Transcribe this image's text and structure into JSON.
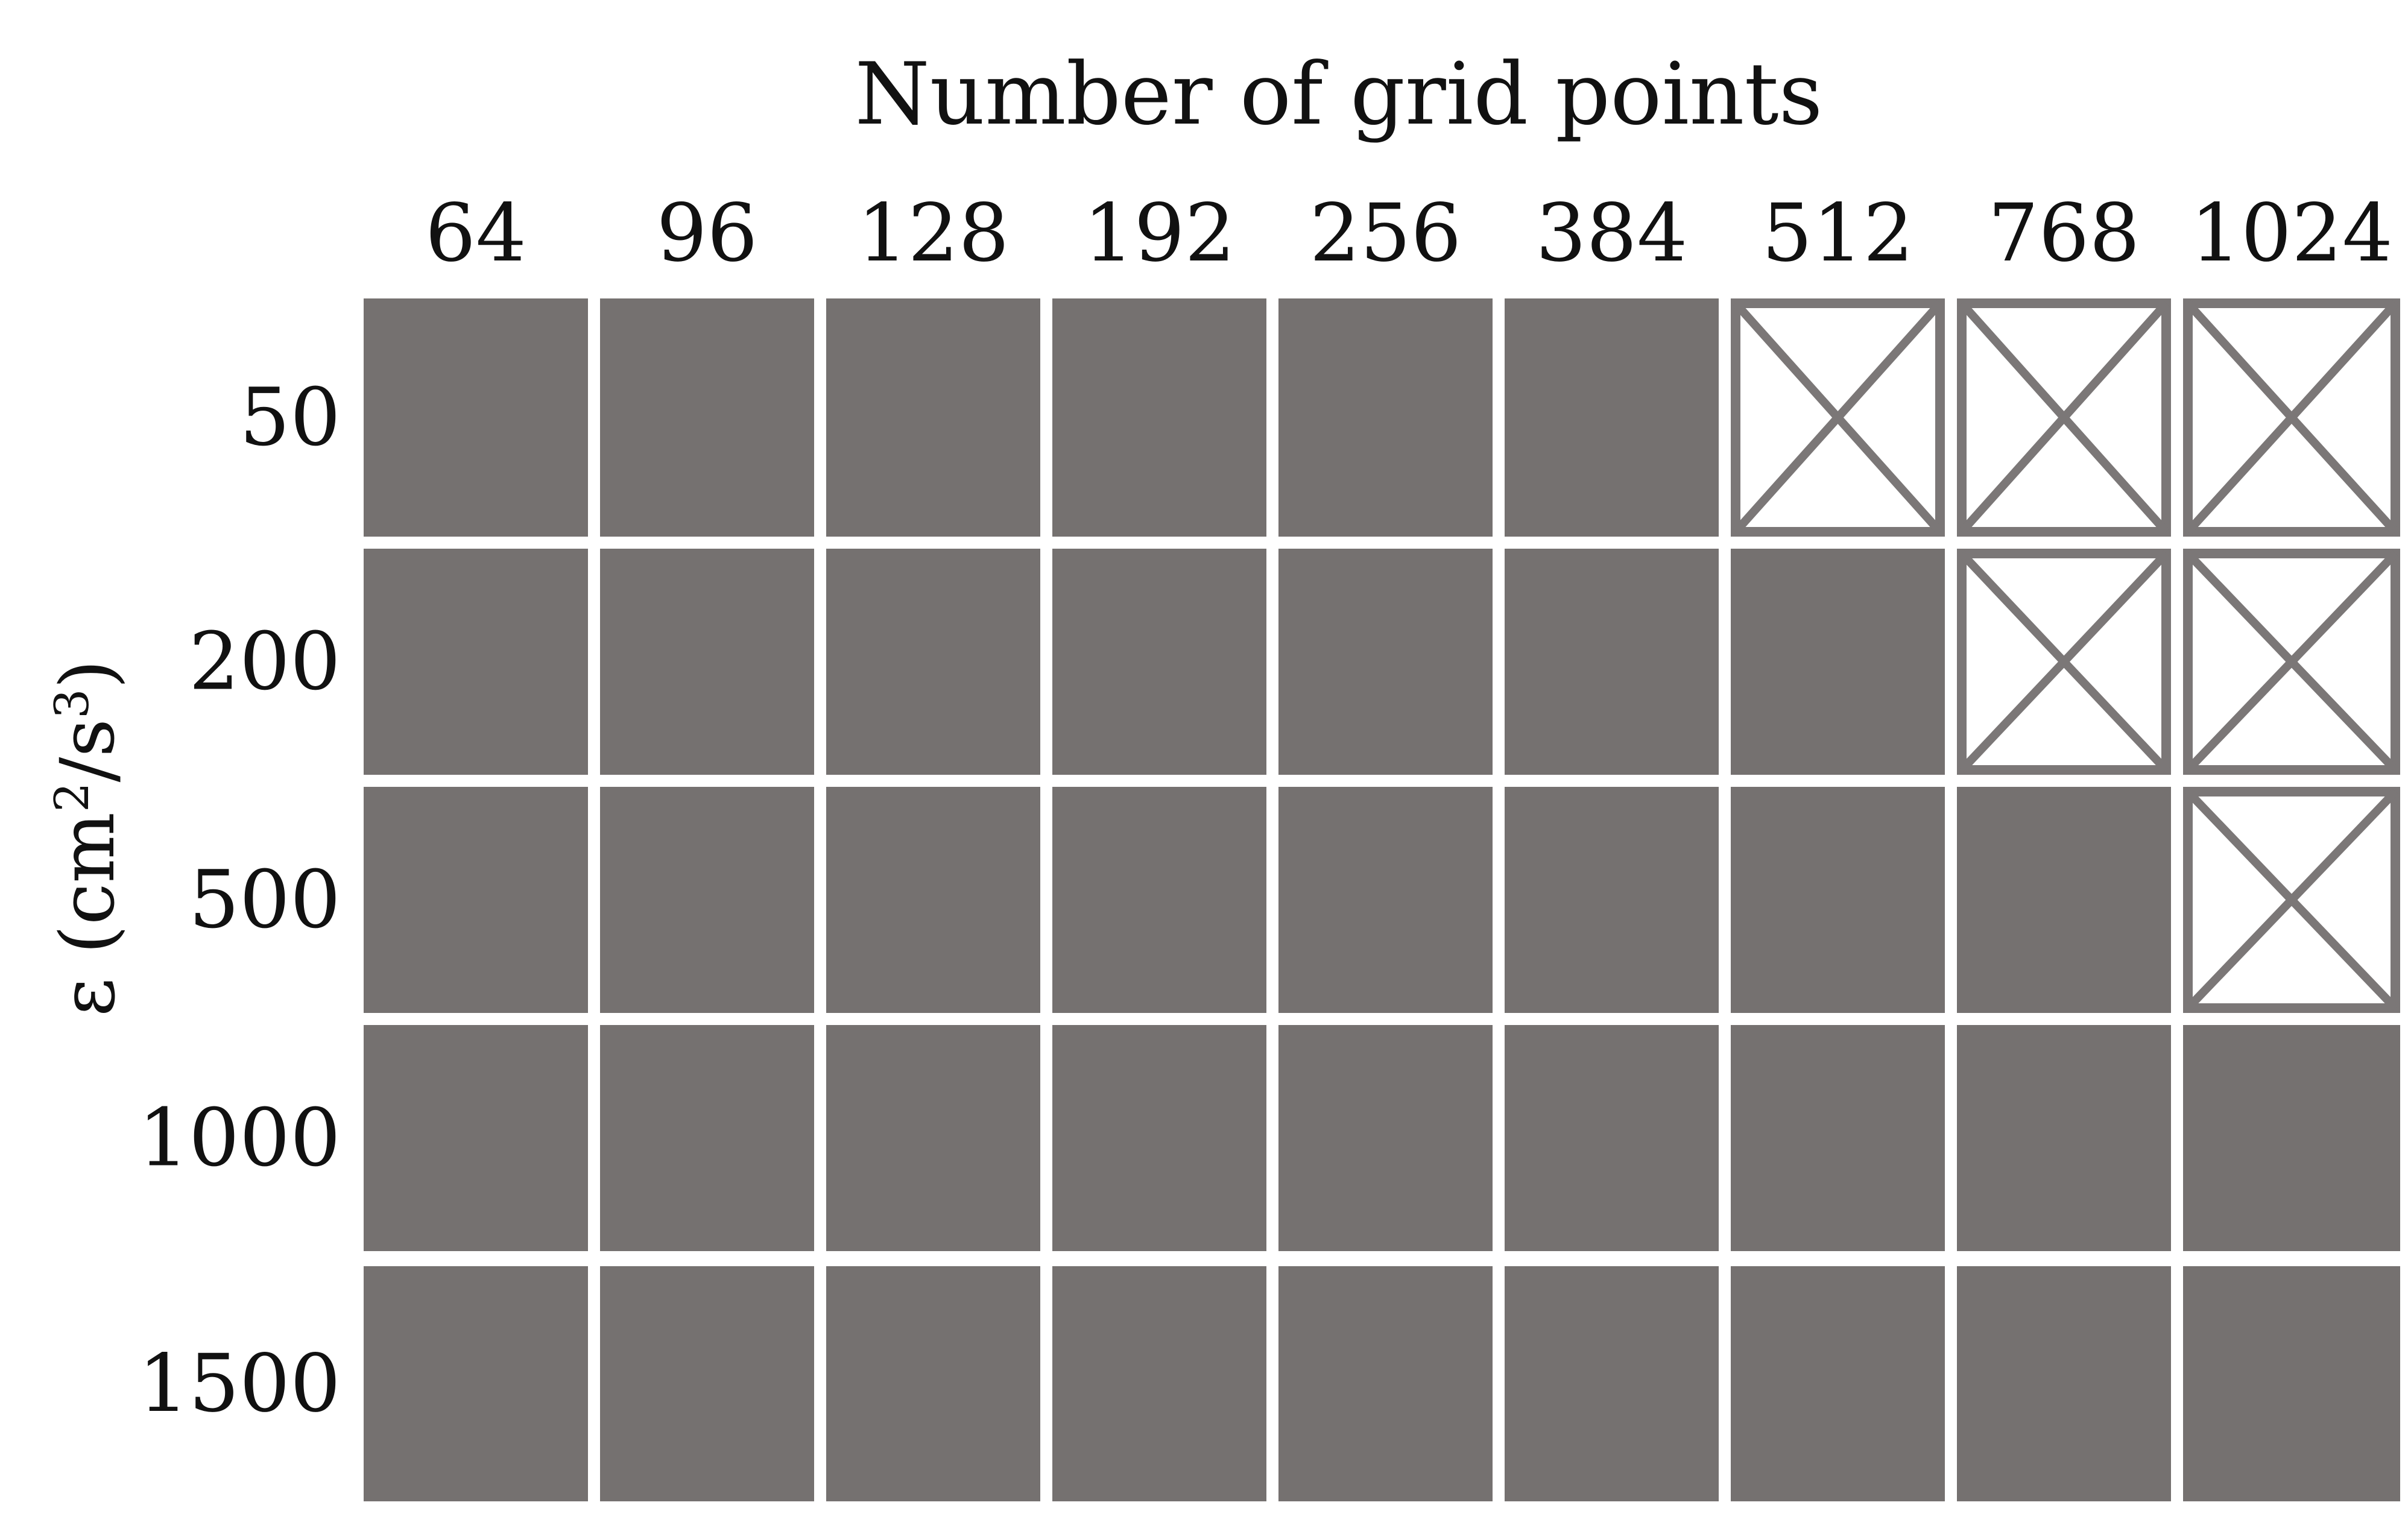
{
  "chart_data": {
    "type": "heatmap",
    "title": "",
    "xlabel": "Number of grid points",
    "ylabel_main": "ε (cm",
    "ylabel_sup2": "2",
    "ylabel_mid": "/s",
    "ylabel_sup3": "3",
    "ylabel_end": ")",
    "x_categories": [
      "64",
      "96",
      "128",
      "192",
      "256",
      "384",
      "512",
      "768",
      "1024"
    ],
    "y_categories": [
      "50",
      "200",
      "500",
      "1000",
      "1500"
    ],
    "cells": [
      [
        1,
        1,
        1,
        1,
        1,
        1,
        0,
        0,
        0
      ],
      [
        1,
        1,
        1,
        1,
        1,
        1,
        1,
        0,
        0
      ],
      [
        1,
        1,
        1,
        1,
        1,
        1,
        1,
        1,
        0
      ],
      [
        1,
        1,
        1,
        1,
        1,
        1,
        1,
        1,
        1
      ],
      [
        1,
        1,
        1,
        1,
        1,
        1,
        1,
        1,
        1
      ]
    ],
    "colors": {
      "filled": "#757170",
      "empty": "#ffffff",
      "cross": "#7b7777",
      "gap": "#ffffff"
    }
  }
}
